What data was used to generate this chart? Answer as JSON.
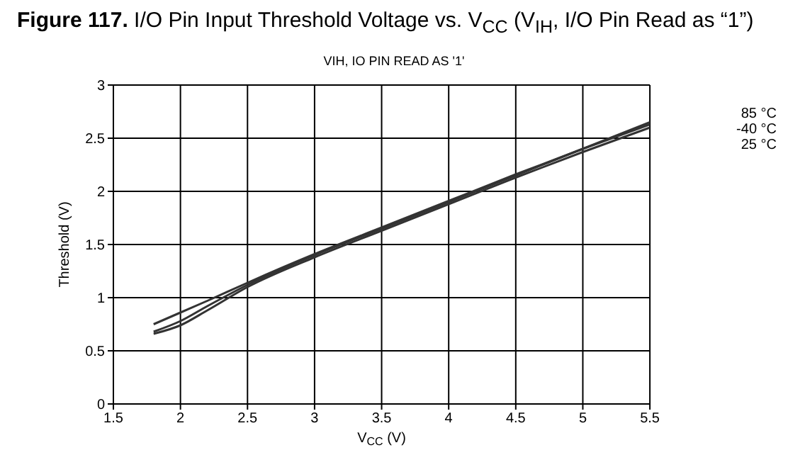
{
  "chart_data": {
    "type": "line",
    "title": "Figure 117.  I/O Pin Input Threshold Voltage vs. V$_{CC}$ (V$_{IH}$, I/O Pin Read as “1”)",
    "subtitle": "VIH, IO PIN READ AS '1'",
    "xlabel": "V$_{CC}$ (V)",
    "ylabel": "Threshold (V)",
    "x": [
      1.8,
      2.0,
      2.2,
      2.5,
      3,
      3.5,
      4,
      4.5,
      5,
      5.5
    ],
    "series": [
      {
        "name": "85 °C",
        "color": "#333333",
        "values": [
          0.68,
          0.78,
          0.92,
          1.12,
          1.4,
          1.65,
          1.9,
          2.15,
          2.4,
          2.65
        ]
      },
      {
        "name": "-40 °C",
        "color": "#333333",
        "values": [
          0.75,
          0.86,
          0.97,
          1.14,
          1.41,
          1.66,
          1.91,
          2.16,
          2.4,
          2.63
        ]
      },
      {
        "name": "25 °C",
        "color": "#333333",
        "values": [
          0.66,
          0.74,
          0.88,
          1.1,
          1.38,
          1.63,
          1.88,
          2.13,
          2.37,
          2.6
        ]
      }
    ],
    "xlim": [
      1.5,
      5.5
    ],
    "xticks": [
      1.5,
      2,
      2.5,
      3,
      3.5,
      4,
      4.5,
      5,
      5.5
    ],
    "ylim": [
      0,
      3
    ],
    "yticks": [
      0,
      0.5,
      1,
      1.5,
      2,
      2.5,
      3
    ],
    "grid": true,
    "legend": "right",
    "marker": "none",
    "line_style": "solid"
  }
}
